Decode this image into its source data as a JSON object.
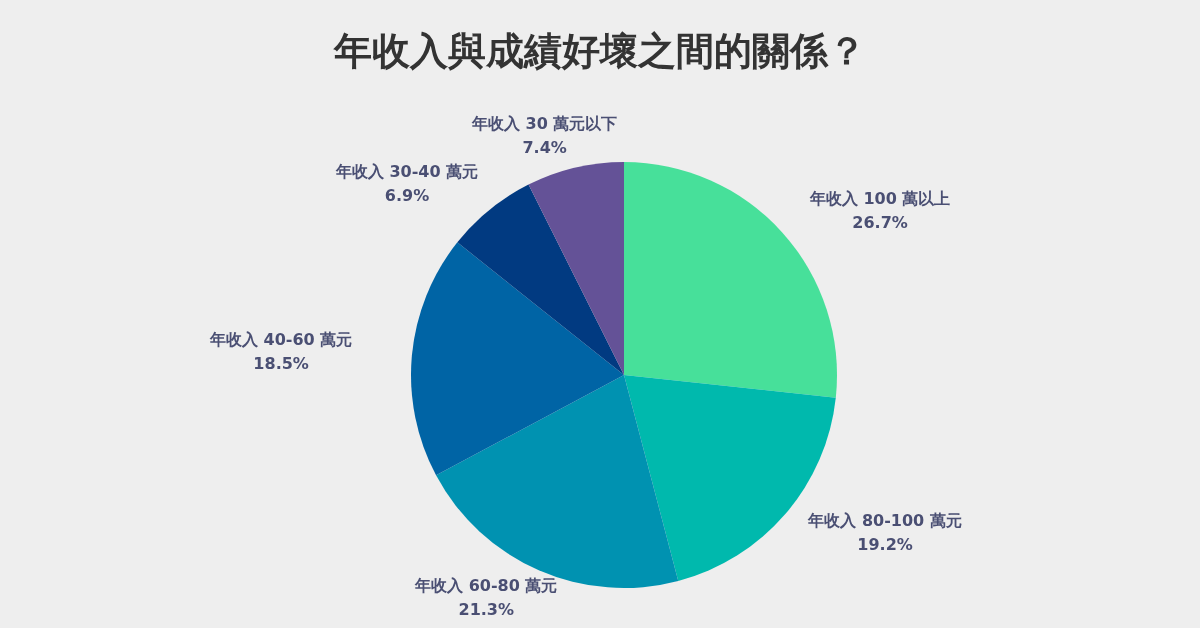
{
  "chart_data": {
    "type": "pie",
    "title": "年收入與成績好壞之間的關係？",
    "categories": [
      "年收入 100 萬以上",
      "年收入 80-100 萬元",
      "年收入 60-80 萬元",
      "年收入 40-60 萬元",
      "年收入 30-40 萬元",
      "年收入 30 萬元以下"
    ],
    "values": [
      26.7,
      19.2,
      21.3,
      18.5,
      6.9,
      7.4
    ],
    "value_labels": [
      "26.7%",
      "19.2%",
      "21.3%",
      "18.5%",
      "6.9%",
      "7.4%"
    ],
    "colors": [
      "#47e09a",
      "#00b9ad",
      "#0092b1",
      "#0064a5",
      "#013a81",
      "#645297"
    ]
  }
}
